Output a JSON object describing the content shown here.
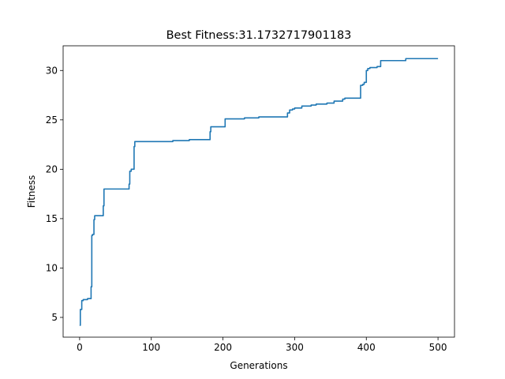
{
  "chart_data": {
    "type": "line",
    "title": "Best Fitness:31.1732717901183",
    "xlabel": "Generations",
    "ylabel": "Fitness",
    "xlim": [
      -23,
      523
    ],
    "ylim": [
      3.0,
      32.5
    ],
    "xticks": [
      0,
      100,
      200,
      300,
      400,
      500
    ],
    "yticks": [
      5,
      10,
      15,
      20,
      25,
      30
    ],
    "grid": false,
    "legend": "none",
    "line_color": "#1f77b4",
    "series": [
      {
        "x": [
          0,
          1,
          1,
          3,
          3,
          5,
          5,
          11,
          11,
          16,
          16,
          17,
          17,
          18,
          18,
          20,
          20,
          21,
          21,
          24,
          24,
          33,
          33,
          34,
          34,
          69,
          69,
          70,
          70,
          72,
          72,
          76,
          76,
          77,
          77,
          119,
          119,
          130,
          130,
          136,
          136,
          153,
          153,
          182,
          182,
          183,
          183,
          185,
          185,
          203,
          203,
          230,
          230,
          250,
          250,
          290,
          290,
          293,
          293,
          297,
          297,
          300,
          300,
          310,
          310,
          323,
          323,
          330,
          330,
          345,
          345,
          355,
          355,
          357,
          357,
          367,
          367,
          370,
          370,
          384,
          384,
          392,
          392,
          395,
          395,
          397,
          397,
          400,
          400,
          402,
          402,
          405,
          405,
          415,
          415,
          420,
          420,
          455,
          455,
          480,
          480,
          500
        ],
        "y": [
          4.2,
          4.2,
          5.8,
          5.8,
          6.7,
          6.7,
          6.8,
          6.8,
          6.9,
          6.9,
          8.1,
          8.1,
          13.3,
          13.3,
          13.4,
          13.4,
          14.9,
          14.9,
          15.3,
          15.3,
          15.3,
          15.3,
          16.3,
          16.3,
          18.0,
          18.0,
          18.5,
          18.5,
          19.8,
          19.8,
          20.0,
          20.0,
          22.3,
          22.3,
          22.8,
          22.8,
          22.8,
          22.8,
          22.9,
          22.9,
          22.9,
          22.9,
          23.0,
          23.0,
          23.8,
          23.8,
          24.3,
          24.3,
          24.3,
          24.3,
          25.1,
          25.1,
          25.2,
          25.2,
          25.3,
          25.3,
          25.7,
          25.7,
          26.0,
          26.0,
          26.1,
          26.1,
          26.2,
          26.2,
          26.4,
          26.4,
          26.5,
          26.5,
          26.6,
          26.6,
          26.7,
          26.7,
          26.9,
          26.9,
          26.9,
          26.9,
          27.1,
          27.1,
          27.2,
          27.2,
          27.2,
          27.2,
          28.5,
          28.5,
          28.6,
          28.6,
          28.8,
          28.8,
          30.0,
          30.0,
          30.2,
          30.2,
          30.3,
          30.3,
          30.4,
          30.4,
          31.0,
          31.0,
          31.2,
          31.2,
          31.2,
          31.2
        ]
      }
    ]
  }
}
